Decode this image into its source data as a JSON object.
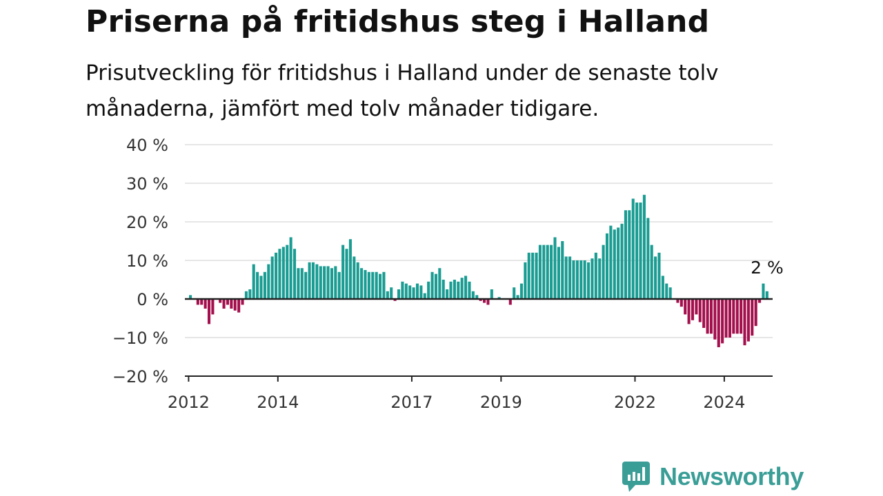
{
  "title": "Priserna på fritidshus steg i Halland",
  "subtitle": "Prisutveckling för fritidshus i Halland under de senaste tolv månaderna, jämfört med tolv månader tidigare.",
  "brand": {
    "name": "Newsworthy",
    "icon": "newsworthy-logo-icon",
    "color": "#3a9e97"
  },
  "colors": {
    "positive": "#1a9c92",
    "negative": "#a3104d",
    "grid": "#dddddd",
    "axis": "#222222"
  },
  "chart_data": {
    "type": "bar",
    "grid": true,
    "ylim": [
      -20,
      40
    ],
    "yticks": [
      -20,
      -10,
      0,
      10,
      20,
      30,
      40
    ],
    "ytick_labels": [
      "−20 %",
      "−10 %",
      "0 %",
      "10 %",
      "20 %",
      "30 %",
      "40 %"
    ],
    "x_start": "2011-12",
    "x_end": "2025-02",
    "xticks": [
      "2012-01",
      "2014-01",
      "2017-01",
      "2019-01",
      "2022-01",
      "2024-01"
    ],
    "xtick_labels": [
      "2012",
      "2014",
      "2017",
      "2019",
      "2022",
      "2024"
    ],
    "annotation": {
      "label": "2 %",
      "x": "2024-12",
      "value": 2
    },
    "series": [
      {
        "start": "2012-01",
        "end": "2024-12",
        "values": [
          1,
          0,
          -1.5,
          -1.5,
          -2.5,
          -6.5,
          -4,
          0,
          -1,
          -2.5,
          -1.5,
          -2.5,
          -3,
          -3.5,
          -1.5,
          2,
          2.5,
          9,
          7,
          6,
          7,
          9,
          11,
          12,
          13,
          13.5,
          14,
          16,
          13,
          8,
          8,
          7,
          9.5,
          9.5,
          9,
          8.5,
          8.5,
          8.5,
          8,
          8.5,
          7,
          14,
          13,
          15.5,
          11,
          9.5,
          8,
          7.5,
          7,
          7,
          7,
          6.5,
          7,
          2,
          3,
          -0.5,
          2.5,
          4.5,
          4,
          3.5,
          3,
          4,
          3.5,
          1.5,
          4.5,
          7,
          6.5,
          8,
          5,
          2.5,
          4.5,
          5,
          4.5,
          5.5,
          6,
          4.5,
          2,
          1,
          -0.5,
          -1,
          -1.5,
          2.5,
          0,
          0.5,
          0,
          0,
          -1.5,
          3,
          1,
          4,
          9.5,
          12,
          12,
          12,
          14,
          14,
          14,
          14,
          16,
          13.5,
          15,
          11,
          11,
          10,
          10,
          10,
          10,
          9.5,
          10.5,
          12,
          10.5,
          14,
          17,
          19,
          18,
          18.5,
          19.5,
          23,
          23,
          26,
          25,
          25,
          27,
          21,
          14,
          11,
          12,
          6,
          4,
          3,
          0,
          -1,
          -2,
          -4,
          -6.5,
          -5.5,
          -4,
          -6,
          -7.5,
          -9,
          -9,
          -10.5,
          -12.5,
          -11.5,
          -10,
          -10,
          -9,
          -9,
          -9,
          -12,
          -11,
          -9.5,
          -7,
          -1,
          4,
          2
        ]
      }
    ]
  }
}
